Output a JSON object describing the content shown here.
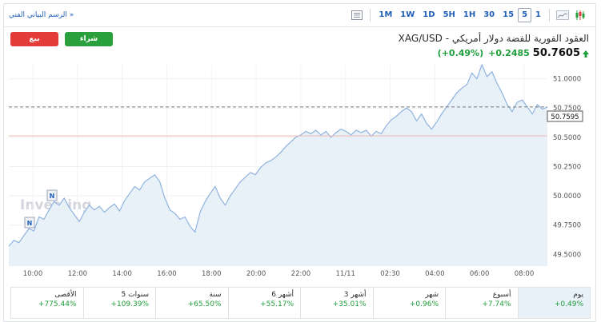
{
  "header": {
    "technical_chart_link": "الرسم البياني الفني »",
    "timeframes": [
      "1",
      "5",
      "15",
      "30",
      "1H",
      "5H",
      "1D",
      "1W",
      "1M"
    ],
    "active_timeframe": "5"
  },
  "trade": {
    "sell_label": "بيع",
    "buy_label": "شراء"
  },
  "instrument": {
    "title": "XAG/USD - العقود الفورية للفضة دولار أمريكي",
    "price": "50.7605",
    "change": "+0.2485",
    "change_pct": "(+0.49%)"
  },
  "chart": {
    "watermark": "Investing",
    "y_ticks": [
      "51.0000",
      "50.7500",
      "50.5000",
      "50.2500",
      "50.0000",
      "49.7500",
      "49.5000"
    ],
    "x_ticks": [
      "10:00",
      "12:00",
      "14:00",
      "16:00",
      "18:00",
      "20:00",
      "22:00",
      "11/11",
      "02:30",
      "04:00",
      "06:00",
      "08:00"
    ],
    "current_price_label": "50.7595",
    "event_markers": [
      "N",
      "N"
    ],
    "colors": {
      "line": "#8fb3de",
      "area": "#e8f0f8",
      "prev_close_line": "#f3b8b0",
      "last_price_line": "#777777"
    }
  },
  "chart_data": {
    "type": "area",
    "y_range": [
      49.4,
      51.12
    ],
    "reference_lines": {
      "last_price": 50.7595,
      "previous_close": 50.512
    },
    "points": [
      49.57,
      49.62,
      49.6,
      49.66,
      49.72,
      49.7,
      49.82,
      49.8,
      49.88,
      49.95,
      49.92,
      49.98,
      49.9,
      49.84,
      49.78,
      49.86,
      49.92,
      49.88,
      49.91,
      49.86,
      49.9,
      49.93,
      49.87,
      49.96,
      50.02,
      50.08,
      50.05,
      50.12,
      50.15,
      50.18,
      50.12,
      49.98,
      49.88,
      49.85,
      49.8,
      49.82,
      49.74,
      49.69,
      49.86,
      49.95,
      50.02,
      50.08,
      49.98,
      49.92,
      50.0,
      50.06,
      50.12,
      50.16,
      50.2,
      50.18,
      50.24,
      50.28,
      50.3,
      50.33,
      50.37,
      50.42,
      50.46,
      50.5,
      50.52,
      50.55,
      50.53,
      50.56,
      50.52,
      50.55,
      50.5,
      50.54,
      50.57,
      50.55,
      50.52,
      50.56,
      50.54,
      50.56,
      50.51,
      50.55,
      50.53,
      50.6,
      50.65,
      50.68,
      50.72,
      50.75,
      50.72,
      50.64,
      50.7,
      50.62,
      50.57,
      50.63,
      50.7,
      50.76,
      50.82,
      50.88,
      50.92,
      50.95,
      51.05,
      51.0,
      51.12,
      51.02,
      51.06,
      50.96,
      50.88,
      50.78,
      50.72,
      50.8,
      50.82,
      50.76,
      50.7,
      50.78,
      50.74,
      50.7595
    ]
  },
  "performance": [
    {
      "label": "يوم",
      "value": "+0.49%"
    },
    {
      "label": "أسبوع",
      "value": "+7.74%"
    },
    {
      "label": "شهر",
      "value": "+0.96%"
    },
    {
      "label": "3 أشهر",
      "value": "+35.01%"
    },
    {
      "label": "6 أشهر",
      "value": "+55.17%"
    },
    {
      "label": "سنة",
      "value": "+65.50%"
    },
    {
      "label": "5 سنوات",
      "value": "+109.39%"
    },
    {
      "label": "الأقصى",
      "value": "+775.44%"
    }
  ]
}
